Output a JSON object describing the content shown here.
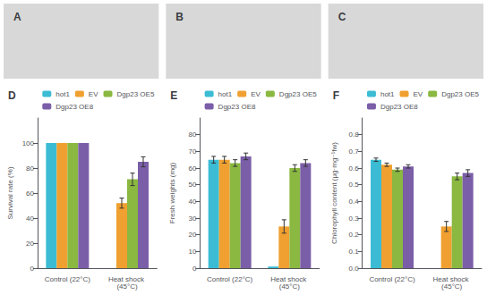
{
  "chart_data": [
    {
      "type": "image",
      "title": "A",
      "color": "#d8d8d8",
      "tick_labels": false
    },
    {
      "type": "image",
      "title": "B",
      "color": "#d8d8d8",
      "tick_labels": false
    },
    {
      "type": "image",
      "title": "C",
      "color": "#d8d8d8",
      "tick_labels": false
    },
    {
      "type": "bar",
      "title": "D",
      "ylabel": "Survival rate (%)",
      "categories": [
        "Control (22°C)",
        "Heat shock (45°C)"
      ],
      "series": [
        {
          "name": "hot1",
          "color": "#3bbcd4",
          "values": [
            100,
            0
          ],
          "errors": [
            0,
            0
          ]
        },
        {
          "name": "EV",
          "color": "#f0a030",
          "values": [
            100,
            52
          ],
          "errors": [
            0,
            4
          ]
        },
        {
          "name": "Dgp23 OE5",
          "color": "#8ab840",
          "values": [
            100,
            71
          ],
          "errors": [
            0,
            5
          ]
        },
        {
          "name": "Dgp23 OE8",
          "color": "#7b5ea8",
          "values": [
            100,
            85
          ],
          "errors": [
            0,
            4
          ]
        }
      ],
      "ylim": [
        0,
        120
      ],
      "yticks": [
        0,
        20,
        40,
        60,
        80,
        100
      ],
      "grid": false,
      "legend": "upper right"
    },
    {
      "type": "bar",
      "title": "E",
      "ylabel": "Fresh weights (mg)",
      "categories": [
        "Control (22°C)",
        "Heat shock (45°C)"
      ],
      "series": [
        {
          "name": "hot1",
          "color": "#3bbcd4",
          "values": [
            65,
            1
          ],
          "errors": [
            2,
            0
          ]
        },
        {
          "name": "EV",
          "color": "#f0a030",
          "values": [
            65,
            25
          ],
          "errors": [
            2,
            4
          ]
        },
        {
          "name": "Dgp23 OE5",
          "color": "#8ab840",
          "values": [
            63,
            60
          ],
          "errors": [
            2,
            2
          ]
        },
        {
          "name": "Dgp23 OE8",
          "color": "#7b5ea8",
          "values": [
            67,
            63
          ],
          "errors": [
            2,
            2
          ]
        }
      ],
      "ylim": [
        0,
        90
      ],
      "yticks": [
        0,
        10,
        20,
        30,
        40,
        50,
        60,
        70,
        80
      ],
      "grid": false,
      "legend": "upper right"
    },
    {
      "type": "bar",
      "title": "F",
      "ylabel": "Chlorophyll content (μg·mg⁻¹fw)",
      "categories": [
        "Control (22°C)",
        "Heat shock (45°C)"
      ],
      "series": [
        {
          "name": "hot1",
          "color": "#3bbcd4",
          "values": [
            0.65,
            0.0
          ],
          "errors": [
            0.01,
            0.0
          ]
        },
        {
          "name": "EV",
          "color": "#f0a030",
          "values": [
            0.62,
            0.25
          ],
          "errors": [
            0.01,
            0.03
          ]
        },
        {
          "name": "Dgp23 OE5",
          "color": "#8ab840",
          "values": [
            0.59,
            0.55
          ],
          "errors": [
            0.01,
            0.02
          ]
        },
        {
          "name": "Dgp23 OE8",
          "color": "#7b5ea8",
          "values": [
            0.61,
            0.57
          ],
          "errors": [
            0.01,
            0.02
          ]
        }
      ],
      "ylim": [
        0,
        0.9
      ],
      "yticks": [
        {
          "value": 0,
          "label": "0.0"
        },
        0.1,
        0.2,
        0.3,
        0.4,
        0.5,
        0.6,
        0.7,
        0.8
      ],
      "grid": false,
      "legend": "upper right"
    }
  ]
}
